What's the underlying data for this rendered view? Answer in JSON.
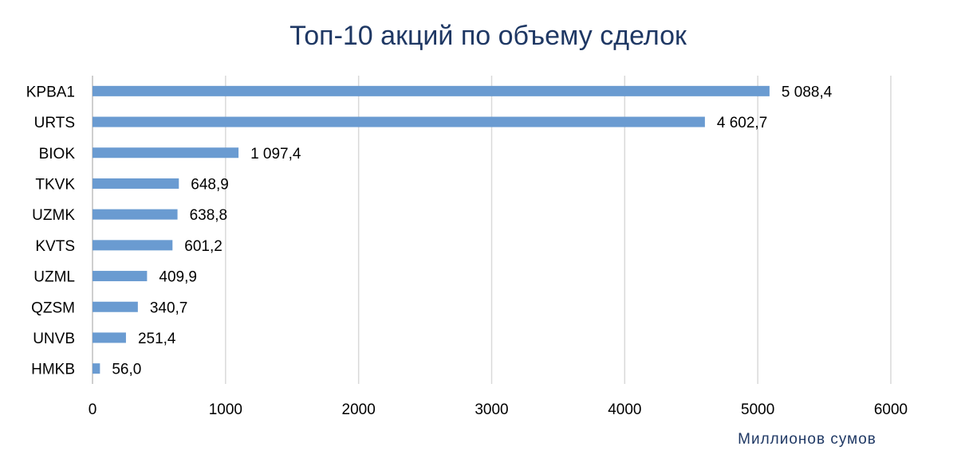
{
  "chart_data": {
    "type": "bar",
    "orientation": "horizontal",
    "title": "Топ-10 акций по объему сделок",
    "xlabel": "Миллионов сумов",
    "ylabel": "",
    "xlim": [
      0,
      6000
    ],
    "x_ticks": [
      0,
      1000,
      2000,
      3000,
      4000,
      5000,
      6000
    ],
    "grid": true,
    "legend": "none",
    "bar_color": "#6a9bd1",
    "categories": [
      "KPBA1",
      "URTS",
      "BIOK",
      "TKVK",
      "UZMK",
      "KVTS",
      "UZML",
      "QZSM",
      "UNVB",
      "HMKB"
    ],
    "values": [
      5088.4,
      4602.7,
      1097.4,
      648.9,
      638.8,
      601.2,
      409.9,
      340.7,
      251.4,
      56.0
    ],
    "value_labels": [
      "5 088,4",
      "4 602,7",
      "1 097,4",
      "648,9",
      "638,8",
      "601,2",
      "409,9",
      "340,7",
      "251,4",
      "56,0"
    ]
  }
}
